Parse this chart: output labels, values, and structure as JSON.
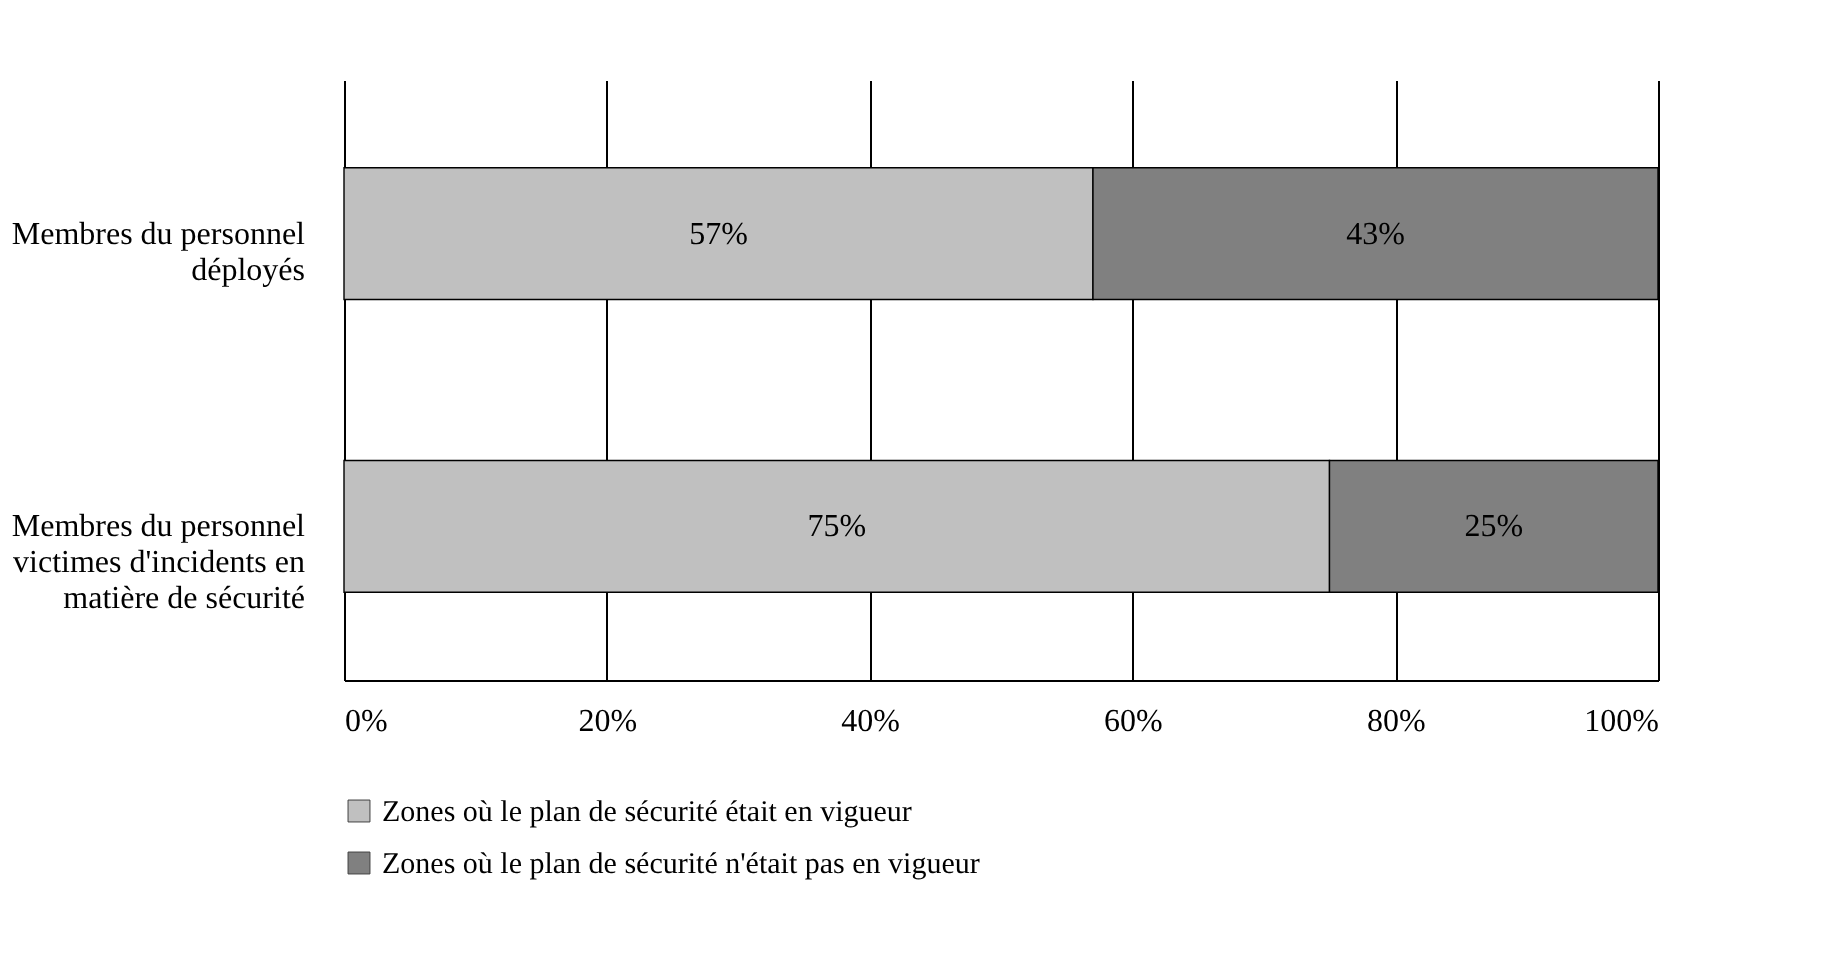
{
  "chart_data": {
    "type": "bar",
    "orientation": "horizontal",
    "stacked": true,
    "categories": [
      "Membres du personnel\ndéployés",
      "Membres du personnel\nvictimes d'incidents en\nmatière de sécurité"
    ],
    "series": [
      {
        "name": "Zones où le plan de sécurité était en vigueur",
        "color": "#c0c0c0",
        "values": [
          57,
          75
        ]
      },
      {
        "name": "Zones où le plan de sécurité n'était pas en vigueur",
        "color": "#808080",
        "values": [
          43,
          25
        ]
      }
    ],
    "xlim": [
      0,
      100
    ],
    "xticks": [
      {
        "value": 0,
        "label": "0%"
      },
      {
        "value": 20,
        "label": "20%"
      },
      {
        "value": 40,
        "label": "40%"
      },
      {
        "value": 60,
        "label": "60%"
      },
      {
        "value": 80,
        "label": "80%"
      },
      {
        "value": 100,
        "label": "100%"
      }
    ],
    "value_labels": [
      [
        "57%",
        "75%"
      ],
      [
        "43%",
        "25%"
      ]
    ],
    "grid": "x",
    "legend": "bottom"
  }
}
